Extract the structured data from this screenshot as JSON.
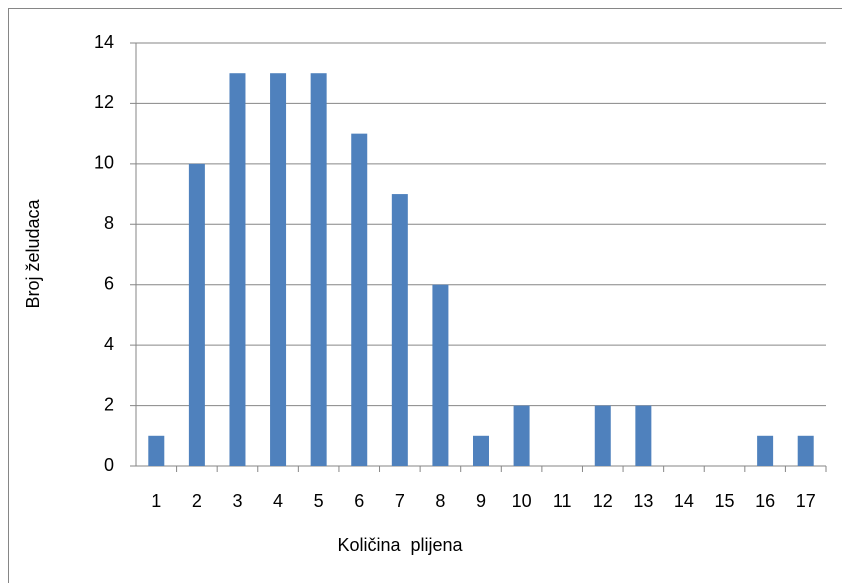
{
  "chart_data": {
    "type": "bar",
    "x_label": "Količina  plijena",
    "y_label": "Broj želudaca",
    "categories": [
      "1",
      "2",
      "3",
      "4",
      "5",
      "6",
      "7",
      "8",
      "9",
      "10",
      "11",
      "12",
      "13",
      "14",
      "15",
      "16",
      "17"
    ],
    "values": [
      1,
      10,
      13,
      13,
      13,
      11,
      9,
      6,
      1,
      2,
      0,
      2,
      2,
      0,
      0,
      1,
      1
    ],
    "color": "#4f81bd",
    "ylim": [
      0,
      14
    ],
    "yticks": [
      0,
      2,
      4,
      6,
      8,
      10,
      12,
      14
    ],
    "grid": true
  }
}
